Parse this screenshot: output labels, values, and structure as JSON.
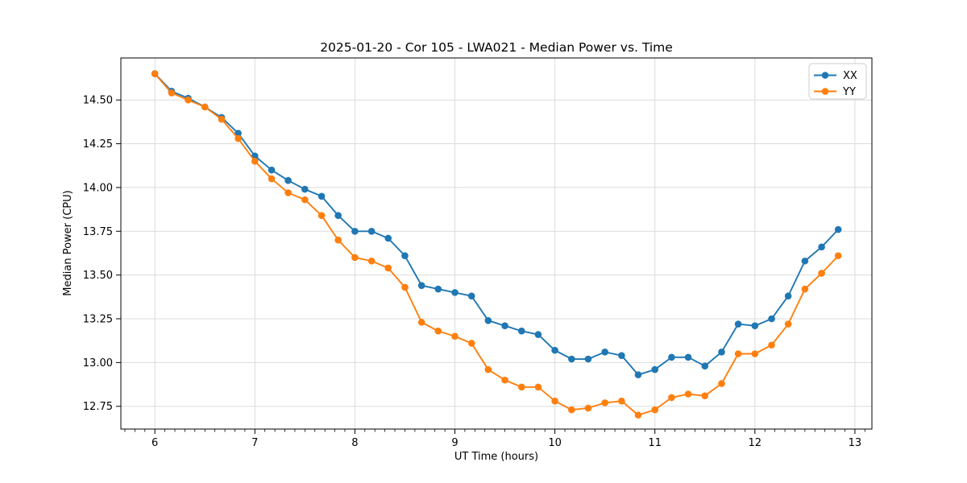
{
  "chart_data": {
    "type": "line",
    "title": "2025-01-20 - Cor 105 - LWA021 - Median Power vs. Time",
    "xlabel": "UT Time (hours)",
    "ylabel": "Median Power (CPU)",
    "x": [
      6.0,
      6.167,
      6.333,
      6.5,
      6.667,
      6.833,
      7.0,
      7.167,
      7.333,
      7.5,
      7.667,
      7.833,
      8.0,
      8.167,
      8.333,
      8.5,
      8.667,
      8.833,
      9.0,
      9.167,
      9.333,
      9.5,
      9.667,
      9.833,
      10.0,
      10.167,
      10.333,
      10.5,
      10.667,
      10.833,
      11.0,
      11.167,
      11.333,
      11.5,
      11.667,
      11.833,
      12.0,
      12.167,
      12.333,
      12.5,
      12.667,
      12.833
    ],
    "series": [
      {
        "name": "XX",
        "color": "#1f77b4",
        "values": [
          14.65,
          14.55,
          14.51,
          14.46,
          14.4,
          14.31,
          14.18,
          14.1,
          14.04,
          13.99,
          13.95,
          13.84,
          13.75,
          13.75,
          13.71,
          13.61,
          13.44,
          13.42,
          13.4,
          13.38,
          13.24,
          13.21,
          13.18,
          13.16,
          13.07,
          13.02,
          13.02,
          13.06,
          13.04,
          12.93,
          12.96,
          13.03,
          13.03,
          12.98,
          13.06,
          13.22,
          13.21,
          13.25,
          13.38,
          13.58,
          13.66,
          13.76
        ]
      },
      {
        "name": "YY",
        "color": "#ff7f0e",
        "values": [
          14.65,
          14.54,
          14.5,
          14.46,
          14.39,
          14.28,
          14.15,
          14.05,
          13.97,
          13.93,
          13.84,
          13.7,
          13.6,
          13.58,
          13.54,
          13.43,
          13.23,
          13.18,
          13.15,
          13.11,
          12.96,
          12.9,
          12.86,
          12.86,
          12.78,
          12.73,
          12.74,
          12.77,
          12.78,
          12.7,
          12.73,
          12.8,
          12.82,
          12.81,
          12.88,
          13.05,
          13.05,
          13.1,
          13.22,
          13.42,
          13.51,
          13.61
        ]
      }
    ],
    "xlim": [
      5.66,
      13.17
    ],
    "ylim": [
      12.62,
      14.74
    ],
    "xticks": [
      6,
      7,
      8,
      9,
      10,
      11,
      12,
      13
    ],
    "yticks": [
      12.75,
      13.0,
      13.25,
      13.5,
      13.75,
      14.0,
      14.25,
      14.5
    ],
    "x_minor_step": 0.1,
    "grid": true,
    "legend_position": "top-right",
    "grid_color": "#dcdcdc",
    "spine_color": "#000000",
    "legend_border_color": "#cccccc"
  }
}
